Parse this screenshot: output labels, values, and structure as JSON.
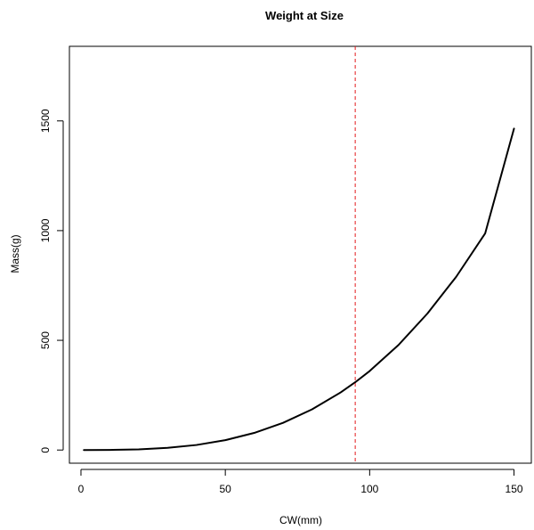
{
  "chart_data": {
    "type": "line",
    "title": "Weight at Size",
    "xlabel": "CW(mm)",
    "ylabel": "Mass(g)",
    "xlim": [
      -4,
      156
    ],
    "ylim": [
      -60,
      1840
    ],
    "x_ticks": [
      0,
      50,
      100,
      150
    ],
    "y_ticks": [
      0,
      500,
      1000,
      1500
    ],
    "series": [
      {
        "color": "#000000",
        "x": [
          1,
          10,
          20,
          30,
          40,
          50,
          60,
          70,
          80,
          90,
          95,
          100,
          110,
          120,
          130,
          140,
          150
        ],
        "y": [
          0,
          0.5,
          3,
          10,
          23,
          45,
          78,
          124,
          185,
          263,
          309,
          360,
          479,
          622,
          790,
          987,
          1465
        ]
      }
    ],
    "reference_line": {
      "orientation": "vertical",
      "x": 95,
      "color": "#e31a1c",
      "style": "dashed"
    },
    "grid": false,
    "legend": "none"
  }
}
